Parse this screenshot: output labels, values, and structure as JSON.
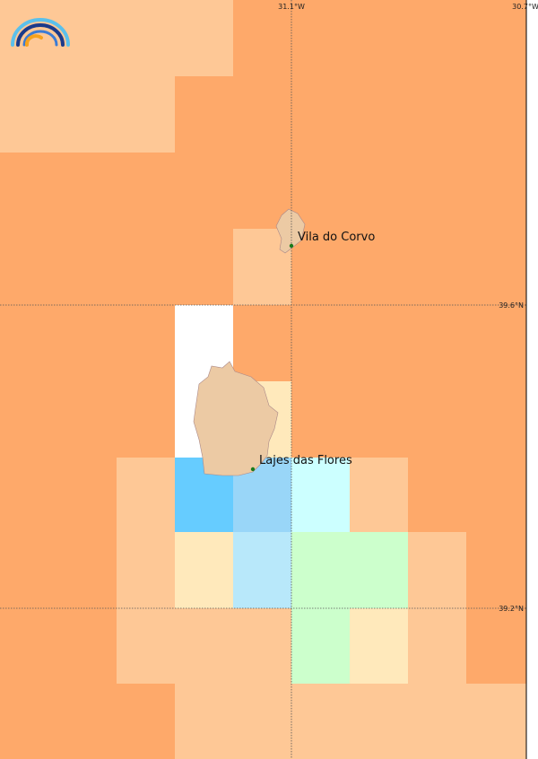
{
  "map": {
    "lon_labels": [
      "31.1°W",
      "30.7°W"
    ],
    "lat_labels": [
      "39.6°N",
      "39.2°N"
    ],
    "places": [
      {
        "name": "Vila do Corvo"
      },
      {
        "name": "Lajes das Flores"
      }
    ]
  }
}
